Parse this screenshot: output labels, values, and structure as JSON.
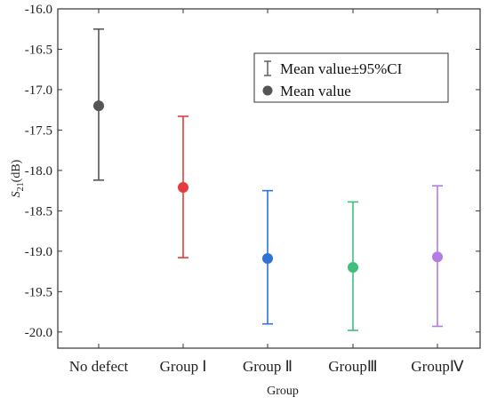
{
  "chart_data": {
    "type": "scatter",
    "subtype": "error-bar",
    "categories": [
      "No defect",
      "Group Ⅰ",
      "Group Ⅱ",
      "GroupⅢ",
      "GroupⅣ"
    ],
    "series": [
      {
        "mean": [
          -17.2,
          -18.21,
          -19.09,
          -19.2,
          -19.07
        ],
        "ci_low": [
          -18.12,
          -19.08,
          -19.9,
          -19.98,
          -19.93
        ],
        "ci_high": [
          -16.25,
          -17.33,
          -18.25,
          -18.39,
          -18.19
        ],
        "colors": [
          "#555555",
          "#e63b3b",
          "#2f72d8",
          "#3fbf7a",
          "#b57be6"
        ]
      }
    ],
    "xlabel": "Group",
    "ylabel_main": "S",
    "ylabel_sub": "21",
    "ylabel_unit": "(dB)",
    "ylim": [
      -20.2,
      -16.0
    ],
    "yticks": [
      -16.0,
      -16.5,
      -17.0,
      -17.5,
      -18.0,
      -18.5,
      -19.0,
      -19.5,
      -20.0
    ],
    "grid": false,
    "legend": {
      "placement": "top-right",
      "entries": [
        "Mean value±95%CI",
        "Mean value"
      ]
    }
  }
}
